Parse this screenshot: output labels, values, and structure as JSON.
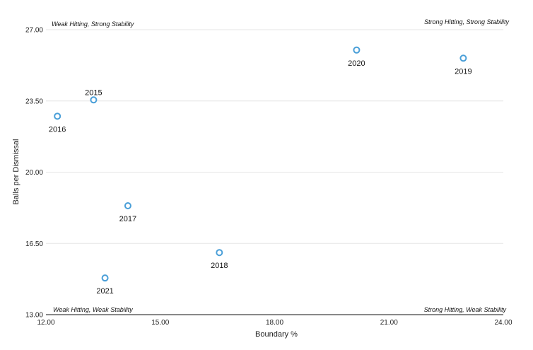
{
  "chart_data": {
    "type": "scatter",
    "xlabel": "Boundary %",
    "ylabel": "Balls per Dismissal",
    "xlim": [
      12,
      24
    ],
    "ylim": [
      13,
      27
    ],
    "x_ticks": [
      "12.00",
      "15.00",
      "18.00",
      "21.00",
      "24.00"
    ],
    "y_ticks": [
      "13.00",
      "16.50",
      "20.00",
      "23.50",
      "27.00"
    ],
    "grid": "horizontal",
    "marker_color": "#4a9fd8",
    "quadrant_labels": {
      "top_left": "Weak Hitting, Strong Stability",
      "top_right": "Strong Hitting, Strong Stability",
      "bottom_left": "Weak Hitting, Weak Stability",
      "bottom_right": "Strong Hitting, Weak Stability"
    },
    "points": [
      {
        "label": "2015",
        "x": 13.25,
        "y": 23.55,
        "label_pos": "above"
      },
      {
        "label": "2016",
        "x": 12.3,
        "y": 22.75,
        "label_pos": "below"
      },
      {
        "label": "2017",
        "x": 14.15,
        "y": 18.35,
        "label_pos": "below"
      },
      {
        "label": "2018",
        "x": 16.55,
        "y": 16.05,
        "label_pos": "below"
      },
      {
        "label": "2019",
        "x": 22.95,
        "y": 25.6,
        "label_pos": "below"
      },
      {
        "label": "2020",
        "x": 20.15,
        "y": 26.0,
        "label_pos": "below"
      },
      {
        "label": "2021",
        "x": 13.55,
        "y": 14.8,
        "label_pos": "below"
      }
    ]
  }
}
